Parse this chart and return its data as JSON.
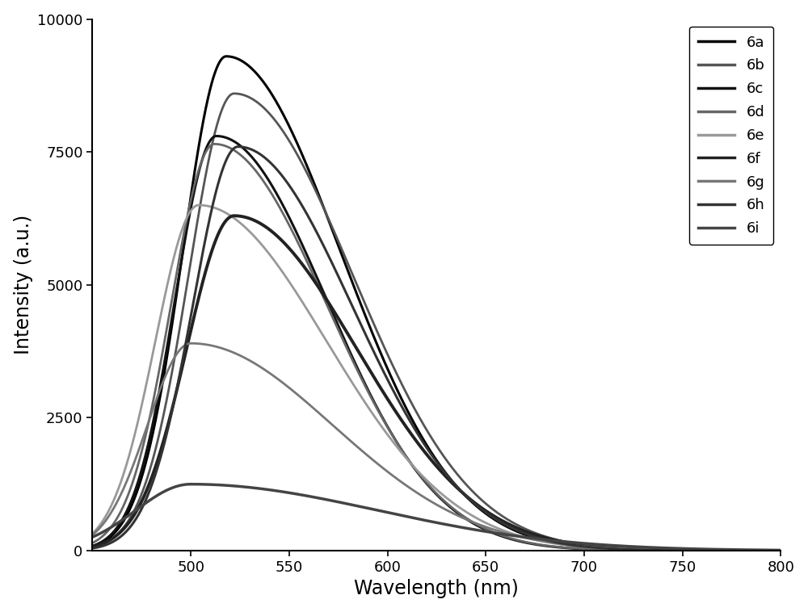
{
  "series": [
    {
      "label": "6a",
      "peak_wl": 518,
      "peak_int": 9300,
      "sigma_l": 22,
      "sigma_r": 58,
      "color": "#000000",
      "linewidth": 2.2
    },
    {
      "label": "6b",
      "peak_wl": 522,
      "peak_int": 8600,
      "sigma_l": 23,
      "sigma_r": 60,
      "color": "#555555",
      "linewidth": 2.0
    },
    {
      "label": "6c",
      "peak_wl": 513,
      "peak_int": 7800,
      "sigma_l": 21,
      "sigma_r": 56,
      "color": "#111111",
      "linewidth": 2.2
    },
    {
      "label": "6d",
      "peak_wl": 512,
      "peak_int": 7650,
      "sigma_l": 22,
      "sigma_r": 57,
      "color": "#666666",
      "linewidth": 2.0
    },
    {
      "label": "6e",
      "peak_wl": 504,
      "peak_int": 6500,
      "sigma_l": 22,
      "sigma_r": 65,
      "color": "#999999",
      "linewidth": 2.0
    },
    {
      "label": "6f",
      "peak_wl": 522,
      "peak_int": 6300,
      "sigma_l": 24,
      "sigma_r": 62,
      "color": "#222222",
      "linewidth": 2.8
    },
    {
      "label": "6g",
      "peak_wl": 500,
      "peak_int": 3900,
      "sigma_l": 22,
      "sigma_r": 72,
      "color": "#777777",
      "linewidth": 2.0
    },
    {
      "label": "6h",
      "peak_wl": 524,
      "peak_int": 7600,
      "sigma_l": 23,
      "sigma_r": 58,
      "color": "#333333",
      "linewidth": 2.2
    },
    {
      "label": "6i",
      "peak_wl": 500,
      "peak_int": 1250,
      "sigma_l": 28,
      "sigma_r": 95,
      "color": "#444444",
      "linewidth": 2.5
    }
  ],
  "xmin": 450,
  "xmax": 800,
  "ymin": 0,
  "ymax": 10000,
  "xlabel": "Wavelength (nm)",
  "ylabel": "Intensity (a.u.)",
  "xticks": [
    500,
    550,
    600,
    650,
    700,
    750,
    800
  ],
  "yticks": [
    0,
    2500,
    5000,
    7500,
    10000
  ],
  "background_color": "#ffffff",
  "legend_fontsize": 13,
  "axis_fontsize": 17,
  "tick_fontsize": 13
}
